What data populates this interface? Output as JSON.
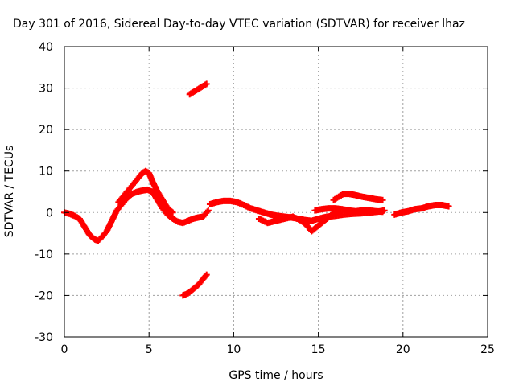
{
  "chart_data": {
    "type": "scatter",
    "title": "Day 301 of 2016, Sidereal Day-to-day VTEC variation (SDTVAR) for receiver lhaz",
    "xlabel": "GPS time / hours",
    "ylabel": "SDTVAR / TECUs",
    "xlim": [
      0,
      25
    ],
    "ylim": [
      -30,
      40
    ],
    "xticks": [
      0,
      5,
      10,
      15,
      20,
      25
    ],
    "yticks": [
      -30,
      -20,
      -10,
      0,
      10,
      20,
      30,
      40
    ],
    "xtick_labels": [
      "0",
      "5",
      "10",
      "15",
      "20",
      "25"
    ],
    "ytick_labels": [
      "-30",
      "-20",
      "-10",
      "0",
      "10",
      "20",
      "30",
      "40"
    ],
    "grid": true,
    "marker": "+",
    "series": [
      {
        "color": "#ff0000",
        "segments": [
          {
            "x": [
              0.0,
              0.3,
              0.6,
              0.9,
              1.2,
              1.5,
              1.8,
              2.0,
              2.2,
              2.5,
              2.8,
              3.1,
              3.4,
              3.7,
              4.0,
              4.3,
              4.6,
              4.9,
              5.2,
              5.5,
              5.8,
              6.1,
              6.4,
              6.7,
              7.0,
              7.3,
              7.6,
              7.9,
              8.2,
              8.5
            ],
            "y": [
              0,
              -0.3,
              -0.8,
              -1.5,
              -3.5,
              -5.5,
              -6.5,
              -6.8,
              -6.0,
              -4.5,
              -2.0,
              0.5,
              2.0,
              3.5,
              4.5,
              5.0,
              5.3,
              5.5,
              5.0,
              3.0,
              1.0,
              -0.5,
              -1.5,
              -2.2,
              -2.5,
              -2.0,
              -1.5,
              -1.2,
              -1.0,
              0.5
            ]
          },
          {
            "x": [
              3.2,
              3.5,
              3.8,
              4.1,
              4.4,
              4.6,
              4.8,
              5.0,
              5.2,
              5.5,
              5.8,
              6.1,
              6.4
            ],
            "y": [
              2.5,
              4.0,
              5.5,
              7.0,
              8.5,
              9.5,
              10.0,
              9.5,
              7.5,
              5.0,
              3.0,
              1.0,
              0.0
            ]
          },
          {
            "x": [
              8.6,
              9.0,
              9.4,
              9.8,
              10.2,
              10.6,
              11.0,
              11.4,
              11.8,
              12.2,
              12.6,
              13.0,
              13.4,
              13.8,
              14.2,
              14.6,
              15.0,
              15.5,
              16.0,
              16.5,
              17.0,
              17.5,
              18.0,
              18.5,
              18.9
            ],
            "y": [
              2.0,
              2.5,
              2.8,
              2.8,
              2.5,
              1.8,
              1.0,
              0.5,
              0.0,
              -0.5,
              -0.8,
              -1.0,
              -1.2,
              -1.5,
              -1.8,
              -2.0,
              -1.5,
              -1.0,
              -0.8,
              -0.5,
              -0.3,
              -0.2,
              0.0,
              0.2,
              0.5
            ]
          },
          {
            "x": [
              11.5,
              12.0,
              12.5,
              13.0,
              13.5,
              14.0,
              14.3,
              14.6,
              14.9,
              15.2,
              15.5,
              15.8,
              16.1
            ],
            "y": [
              -1.5,
              -2.5,
              -2.0,
              -1.5,
              -1.0,
              -2.0,
              -3.0,
              -4.5,
              -3.5,
              -2.5,
              -1.5,
              -0.5,
              0.0
            ]
          },
          {
            "x": [
              14.8,
              15.2,
              15.6,
              16.0,
              16.4,
              16.8,
              17.2,
              17.6,
              18.0,
              18.4,
              18.8
            ],
            "y": [
              0.5,
              0.8,
              1.0,
              1.0,
              0.8,
              0.5,
              0.3,
              0.5,
              0.5,
              0.3,
              0.2
            ]
          },
          {
            "x": [
              15.9,
              16.2,
              16.5,
              16.8,
              17.2,
              17.6,
              18.0,
              18.4,
              18.8
            ],
            "y": [
              3.0,
              3.8,
              4.5,
              4.5,
              4.2,
              3.8,
              3.5,
              3.2,
              3.0
            ]
          },
          {
            "x": [
              19.5,
              19.9,
              20.3,
              20.7,
              21.1,
              21.5,
              21.9,
              22.3,
              22.7
            ],
            "y": [
              -0.5,
              0.0,
              0.3,
              0.8,
              1.0,
              1.5,
              1.8,
              1.8,
              1.5
            ]
          },
          {
            "x": [
              7.4,
              7.6,
              7.8,
              8.0,
              8.2,
              8.4
            ],
            "y": [
              28.5,
              29.0,
              29.5,
              30.0,
              30.5,
              31.0
            ]
          },
          {
            "x": [
              7.0,
              7.3,
              7.6,
              7.9,
              8.2,
              8.4
            ],
            "y": [
              -20.0,
              -19.5,
              -18.5,
              -17.5,
              -16.0,
              -15.0
            ]
          }
        ]
      }
    ]
  }
}
